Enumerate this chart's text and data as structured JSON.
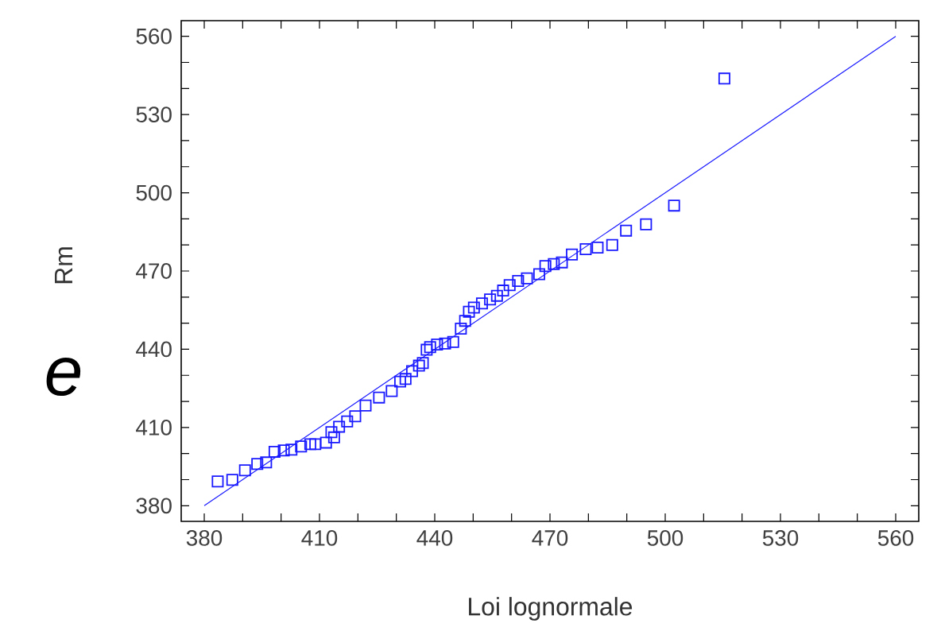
{
  "chart_data": {
    "type": "scatter",
    "xlabel": "Loi lognormale",
    "ylabel": "Rm",
    "annotations": [
      "e"
    ],
    "xlim": [
      374,
      566
    ],
    "ylim": [
      374,
      566
    ],
    "xticks": [
      380,
      {
        "value": 390,
        "label": null
      },
      {
        "value": 400,
        "label": null
      },
      410,
      {
        "value": 420,
        "label": null
      },
      {
        "value": 430,
        "label": null
      },
      440,
      {
        "value": 450,
        "label": null
      },
      {
        "value": 460,
        "label": null
      },
      470,
      {
        "value": 480,
        "label": null
      },
      {
        "value": 490,
        "label": null
      },
      500,
      {
        "value": 510,
        "label": null
      },
      {
        "value": 520,
        "label": null
      },
      530,
      {
        "value": 540,
        "label": null
      },
      {
        "value": 550,
        "label": null
      },
      560
    ],
    "yticks": [
      380,
      {
        "value": 390,
        "label": null
      },
      {
        "value": 400,
        "label": null
      },
      410,
      {
        "value": 420,
        "label": null
      },
      {
        "value": 430,
        "label": null
      },
      440,
      {
        "value": 450,
        "label": null
      },
      {
        "value": 460,
        "label": null
      },
      470,
      {
        "value": 480,
        "label": null
      },
      {
        "value": 490,
        "label": null
      },
      500,
      {
        "value": 510,
        "label": null
      },
      {
        "value": 520,
        "label": null
      },
      530,
      {
        "value": 540,
        "label": null
      },
      {
        "value": 550,
        "label": null
      },
      560
    ],
    "grid": false,
    "marker": "square",
    "series": [
      {
        "color": "#1a1aff",
        "x": [
          383.5,
          387.3,
          390.6,
          393.8,
          396.1,
          398.3,
          400.7,
          402.7,
          405.2,
          407.6,
          408.9,
          411.7,
          413.1,
          413.8,
          415.1,
          417.2,
          419.3,
          422,
          425.5,
          428.8,
          431,
          432.4,
          434.1,
          435.9,
          436.9,
          437.9,
          438.8,
          440.6,
          442.7,
          444.8,
          446.8,
          447.9,
          448.9,
          450.2,
          452.3,
          454.4,
          456.2,
          457.8,
          459.5,
          461.7,
          464,
          467.2,
          468.8,
          471,
          473.1,
          475.7,
          479.3,
          482.4,
          486.2,
          489.8,
          495,
          502.3,
          515.4
        ],
        "values": [
          389.3,
          389.9,
          393.6,
          396,
          396.6,
          400.7,
          401.2,
          401.5,
          402.7,
          403.6,
          403.6,
          404.2,
          408.2,
          406.2,
          410.3,
          412.3,
          414.3,
          418.4,
          421.5,
          424,
          427.6,
          428.6,
          431.6,
          433.7,
          434.7,
          439.8,
          440.8,
          441.8,
          442.2,
          442.8,
          447.9,
          450.9,
          454.4,
          456,
          457.6,
          459.1,
          460.5,
          462.5,
          464.6,
          466.2,
          467.2,
          468.8,
          471.9,
          472.7,
          473.3,
          476.3,
          478.4,
          479,
          480,
          485.5,
          487.9,
          495.1,
          543.8
        ]
      },
      {
        "type": "line",
        "color": "#1a1aff",
        "marker": "none",
        "line_style": "solid",
        "x": [
          380,
          560
        ],
        "values": [
          380,
          560
        ]
      }
    ]
  }
}
